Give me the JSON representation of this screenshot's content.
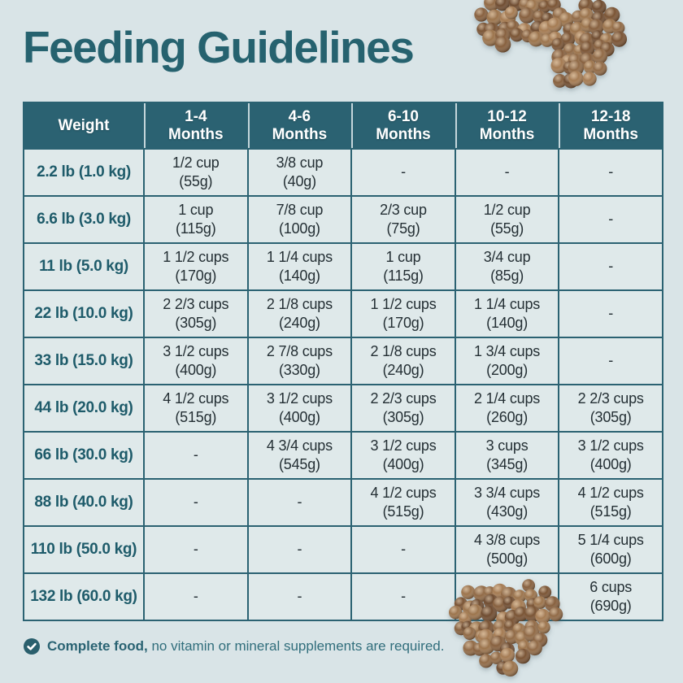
{
  "title": "Feeding Guidelines",
  "colors": {
    "brand_teal": "#2b6272",
    "title_teal": "#26626f",
    "cell_background": "#dfe9ea",
    "page_background": "#d9e4e7",
    "cell_text": "#242f34",
    "kibble_brown": "#8a6341"
  },
  "chart_data": {
    "type": "table",
    "title": "Feeding Guidelines",
    "columns": [
      {
        "label": "Weight",
        "line1": "Weight",
        "line2": ""
      },
      {
        "label": "1-4 Months",
        "line1": "1-4",
        "line2": "Months"
      },
      {
        "label": "4-6 Months",
        "line1": "4-6",
        "line2": "Months"
      },
      {
        "label": "6-10 Months",
        "line1": "6-10",
        "line2": "Months"
      },
      {
        "label": "10-12 Months",
        "line1": "10-12",
        "line2": "Months"
      },
      {
        "label": "12-18 Months",
        "line1": "12-18",
        "line2": "Months"
      }
    ],
    "rows": [
      {
        "weight": "2.2 lb (1.0 kg)",
        "cells": [
          {
            "amount": "1/2 cup",
            "grams": "(55g)"
          },
          {
            "amount": "3/8 cup",
            "grams": "(40g)"
          },
          {
            "amount": "-",
            "grams": ""
          },
          {
            "amount": "-",
            "grams": ""
          },
          {
            "amount": "-",
            "grams": ""
          }
        ]
      },
      {
        "weight": "6.6 lb (3.0 kg)",
        "cells": [
          {
            "amount": "1 cup",
            "grams": "(115g)"
          },
          {
            "amount": "7/8 cup",
            "grams": "(100g)"
          },
          {
            "amount": "2/3 cup",
            "grams": "(75g)"
          },
          {
            "amount": "1/2 cup",
            "grams": "(55g)"
          },
          {
            "amount": "-",
            "grams": ""
          }
        ]
      },
      {
        "weight": "11 lb (5.0 kg)",
        "cells": [
          {
            "amount": "1 1/2 cups",
            "grams": "(170g)"
          },
          {
            "amount": "1 1/4 cups",
            "grams": "(140g)"
          },
          {
            "amount": "1 cup",
            "grams": "(115g)"
          },
          {
            "amount": "3/4 cup",
            "grams": "(85g)"
          },
          {
            "amount": "-",
            "grams": ""
          }
        ]
      },
      {
        "weight": "22 lb (10.0 kg)",
        "cells": [
          {
            "amount": "2 2/3 cups",
            "grams": "(305g)"
          },
          {
            "amount": "2 1/8 cups",
            "grams": "(240g)"
          },
          {
            "amount": "1 1/2 cups",
            "grams": "(170g)"
          },
          {
            "amount": "1 1/4 cups",
            "grams": "(140g)"
          },
          {
            "amount": "-",
            "grams": ""
          }
        ]
      },
      {
        "weight": "33 lb (15.0 kg)",
        "cells": [
          {
            "amount": "3 1/2 cups",
            "grams": "(400g)"
          },
          {
            "amount": "2 7/8 cups",
            "grams": "(330g)"
          },
          {
            "amount": "2 1/8 cups",
            "grams": "(240g)"
          },
          {
            "amount": "1 3/4 cups",
            "grams": "(200g)"
          },
          {
            "amount": "-",
            "grams": ""
          }
        ]
      },
      {
        "weight": "44 lb (20.0 kg)",
        "cells": [
          {
            "amount": "4 1/2 cups",
            "grams": "(515g)"
          },
          {
            "amount": "3 1/2 cups",
            "grams": "(400g)"
          },
          {
            "amount": "2 2/3 cups",
            "grams": "(305g)"
          },
          {
            "amount": "2 1/4 cups",
            "grams": "(260g)"
          },
          {
            "amount": "2 2/3 cups",
            "grams": "(305g)"
          }
        ]
      },
      {
        "weight": "66 lb (30.0 kg)",
        "cells": [
          {
            "amount": "-",
            "grams": ""
          },
          {
            "amount": "4 3/4 cups",
            "grams": "(545g)"
          },
          {
            "amount": "3 1/2 cups",
            "grams": "(400g)"
          },
          {
            "amount": "3 cups",
            "grams": "(345g)"
          },
          {
            "amount": "3 1/2 cups",
            "grams": "(400g)"
          }
        ]
      },
      {
        "weight": "88 lb (40.0 kg)",
        "cells": [
          {
            "amount": "-",
            "grams": ""
          },
          {
            "amount": "-",
            "grams": ""
          },
          {
            "amount": "4 1/2 cups",
            "grams": "(515g)"
          },
          {
            "amount": "3 3/4 cups",
            "grams": "(430g)"
          },
          {
            "amount": "4 1/2 cups",
            "grams": "(515g)"
          }
        ]
      },
      {
        "weight": "110 lb (50.0 kg)",
        "cells": [
          {
            "amount": "-",
            "grams": ""
          },
          {
            "amount": "-",
            "grams": ""
          },
          {
            "amount": "-",
            "grams": ""
          },
          {
            "amount": "4 3/8 cups",
            "grams": "(500g)"
          },
          {
            "amount": "5 1/4 cups",
            "grams": "(600g)"
          }
        ]
      },
      {
        "weight": "132 lb (60.0 kg)",
        "cells": [
          {
            "amount": "-",
            "grams": ""
          },
          {
            "amount": "-",
            "grams": ""
          },
          {
            "amount": "-",
            "grams": ""
          },
          {
            "amount": "-",
            "grams": ""
          },
          {
            "amount": "6 cups",
            "grams": "(690g)"
          }
        ]
      }
    ]
  },
  "footer": {
    "bold": "Complete food,",
    "rest": "no vitamin or mineral supplements are required.",
    "icon": "check-circle-icon"
  },
  "decorations": {
    "top_right": "kibble-bone",
    "bottom_center": "kibble-heart"
  }
}
